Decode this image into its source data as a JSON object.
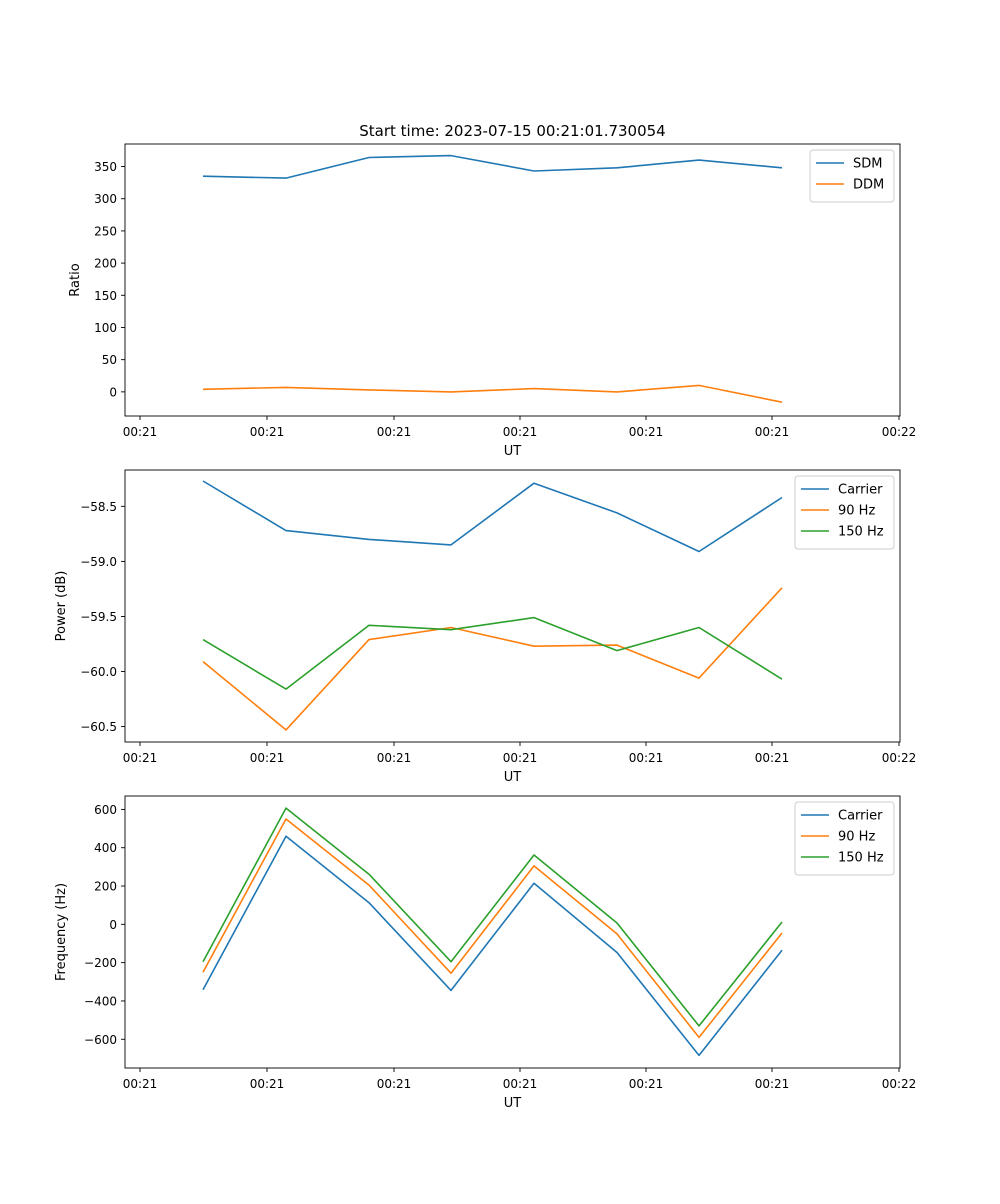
{
  "title": "Start time: 2023-07-15 00:21:01.730054",
  "colors": {
    "blue": "#1f77b4",
    "orange": "#ff7f0e",
    "green": "#2ca02c"
  },
  "chart_data": [
    {
      "type": "line",
      "xlabel": "UT",
      "ylabel": "Ratio",
      "x_tick_labels": [
        "00:21",
        "00:21",
        "00:21",
        "00:21",
        "00:21",
        "00:21",
        "00:22"
      ],
      "yticks": [
        0,
        50,
        100,
        150,
        200,
        250,
        300,
        350
      ],
      "ylim": [
        -37.5,
        385
      ],
      "legend_position": "upper right",
      "series": [
        {
          "name": "SDM",
          "color": "#1f77b4",
          "values": [
            335,
            332,
            364,
            367,
            343,
            348,
            360,
            348
          ]
        },
        {
          "name": "DDM",
          "color": "#ff7f0e",
          "values": [
            4,
            7,
            3,
            0,
            5,
            0,
            10,
            -16
          ]
        }
      ]
    },
    {
      "type": "line",
      "xlabel": "UT",
      "ylabel": "Power (dB)",
      "x_tick_labels": [
        "00:21",
        "00:21",
        "00:21",
        "00:21",
        "00:21",
        "00:21",
        "00:22"
      ],
      "yticks": [
        -60.5,
        -60.0,
        -59.5,
        -59.0,
        -58.5
      ],
      "ytick_labels": [
        "−60.5",
        "−60.0",
        "−59.5",
        "−59.0",
        "−58.5"
      ],
      "ylim": [
        -60.64,
        -58.17
      ],
      "legend_position": "upper right",
      "series": [
        {
          "name": "Carrier",
          "color": "#1f77b4",
          "values": [
            -58.27,
            -58.72,
            -58.8,
            -58.85,
            -58.29,
            -58.56,
            -58.91,
            -58.42
          ]
        },
        {
          "name": "90 Hz",
          "color": "#ff7f0e",
          "values": [
            -59.91,
            -60.53,
            -59.71,
            -59.6,
            -59.77,
            -59.76,
            -60.06,
            -59.24
          ]
        },
        {
          "name": "150 Hz",
          "color": "#2ca02c",
          "values": [
            -59.71,
            -60.16,
            -59.58,
            -59.62,
            -59.51,
            -59.81,
            -59.6,
            -60.07
          ]
        }
      ]
    },
    {
      "type": "line",
      "xlabel": "UT",
      "ylabel": "Frequency (Hz)",
      "x_tick_labels": [
        "00:21",
        "00:21",
        "00:21",
        "00:21",
        "00:21",
        "00:21",
        "00:22"
      ],
      "yticks": [
        -600,
        -400,
        -200,
        0,
        200,
        400,
        600
      ],
      "ytick_labels": [
        "−600",
        "−400",
        "−200",
        "0",
        "200",
        "400",
        "600"
      ],
      "ylim": [
        -750,
        670
      ],
      "legend_position": "upper right",
      "series": [
        {
          "name": "Carrier",
          "color": "#1f77b4",
          "values": [
            -342,
            460,
            113,
            -345,
            215,
            -147,
            -684,
            -135
          ]
        },
        {
          "name": "90 Hz",
          "color": "#ff7f0e",
          "values": [
            -250,
            550,
            205,
            -255,
            305,
            -50,
            -590,
            -45
          ]
        },
        {
          "name": "150 Hz",
          "color": "#2ca02c",
          "values": [
            -195,
            607,
            262,
            -195,
            362,
            7,
            -530,
            12
          ]
        }
      ]
    }
  ]
}
